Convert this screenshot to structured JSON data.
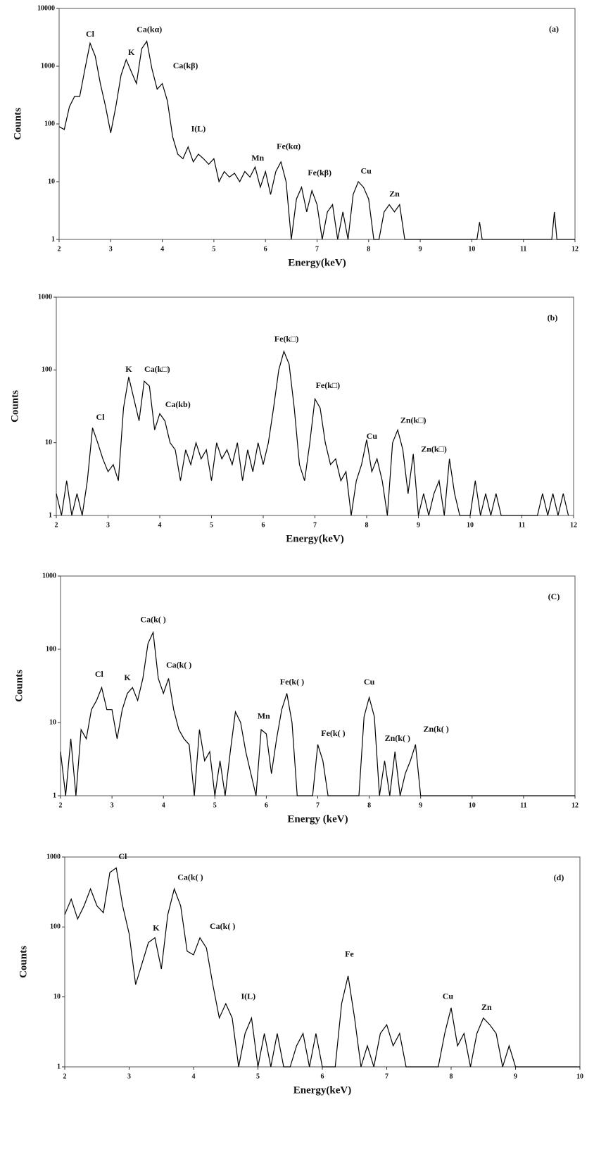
{
  "chart_data": [
    {
      "type": "line",
      "label": "(a)",
      "xlabel": "Energy(keV)",
      "ylabel": "Counts",
      "log_y": true,
      "color": "#000000",
      "xlim": [
        2,
        12
      ],
      "xticks": [
        2,
        3,
        4,
        5,
        6,
        7,
        8,
        9,
        10,
        11,
        12
      ],
      "ylim": [
        1,
        10000
      ],
      "yticks": [
        1,
        10,
        100,
        1000,
        10000
      ],
      "x": [
        2.0,
        2.1,
        2.2,
        2.3,
        2.4,
        2.5,
        2.6,
        2.7,
        2.8,
        2.9,
        3.0,
        3.1,
        3.2,
        3.3,
        3.4,
        3.5,
        3.6,
        3.7,
        3.8,
        3.9,
        4.0,
        4.1,
        4.2,
        4.3,
        4.4,
        4.5,
        4.6,
        4.7,
        4.8,
        4.9,
        5.0,
        5.1,
        5.2,
        5.3,
        5.4,
        5.5,
        5.6,
        5.7,
        5.8,
        5.9,
        6.0,
        6.1,
        6.2,
        6.3,
        6.4,
        6.5,
        6.6,
        6.7,
        6.8,
        6.9,
        7.0,
        7.1,
        7.2,
        7.3,
        7.4,
        7.5,
        7.6,
        7.7,
        7.8,
        7.9,
        8.0,
        8.1,
        8.2,
        8.3,
        8.4,
        8.5,
        8.6,
        8.7,
        8.8,
        10.1,
        10.15,
        10.2,
        11.55,
        11.6,
        11.65,
        12.0
      ],
      "values": [
        90,
        80,
        200,
        300,
        300,
        900,
        2500,
        1500,
        500,
        200,
        70,
        200,
        700,
        1300,
        800,
        500,
        2000,
        2700,
        900,
        400,
        500,
        250,
        60,
        30,
        25,
        40,
        22,
        30,
        25,
        20,
        25,
        10,
        15,
        12,
        14,
        10,
        15,
        12,
        18,
        8,
        15,
        6,
        15,
        22,
        10,
        1,
        5,
        8,
        3,
        7,
        4,
        1,
        3,
        4,
        1,
        3,
        1,
        6,
        10,
        8,
        5,
        1,
        1,
        3,
        4,
        3,
        4,
        1,
        1,
        1,
        2,
        1,
        1,
        3,
        1,
        1
      ],
      "annotations": [
        {
          "text": "Cl",
          "x": 2.6,
          "y": 3500
        },
        {
          "text": "K",
          "x": 3.4,
          "y": 1700
        },
        {
          "text": "Ca(kα)",
          "x": 3.75,
          "y": 4200
        },
        {
          "text": "Ca(kβ)",
          "x": 4.45,
          "y": 1000
        },
        {
          "text": "I(L)",
          "x": 4.7,
          "y": 80
        },
        {
          "text": "Mn",
          "x": 5.85,
          "y": 25
        },
        {
          "text": "Fe(kα)",
          "x": 6.45,
          "y": 40
        },
        {
          "text": "Fe(kβ)",
          "x": 7.05,
          "y": 14
        },
        {
          "text": "Cu",
          "x": 7.95,
          "y": 15
        },
        {
          "text": "Zn",
          "x": 8.5,
          "y": 6
        }
      ]
    },
    {
      "type": "line",
      "label": "(b)",
      "xlabel": "Energy(keV)",
      "ylabel": "Counts",
      "log_y": true,
      "color": "#000000",
      "xlim": [
        2,
        12
      ],
      "xticks": [
        2,
        3,
        4,
        5,
        6,
        7,
        8,
        9,
        10,
        11,
        12
      ],
      "ylim": [
        1,
        1000
      ],
      "yticks": [
        1,
        10,
        100,
        1000
      ],
      "x": [
        2.0,
        2.1,
        2.2,
        2.3,
        2.4,
        2.5,
        2.6,
        2.7,
        2.8,
        2.9,
        3.0,
        3.1,
        3.2,
        3.3,
        3.4,
        3.5,
        3.6,
        3.7,
        3.8,
        3.9,
        4.0,
        4.1,
        4.2,
        4.3,
        4.4,
        4.5,
        4.6,
        4.7,
        4.8,
        4.9,
        5.0,
        5.1,
        5.2,
        5.3,
        5.4,
        5.5,
        5.6,
        5.7,
        5.8,
        5.9,
        6.0,
        6.1,
        6.2,
        6.3,
        6.4,
        6.5,
        6.6,
        6.7,
        6.8,
        6.9,
        7.0,
        7.1,
        7.2,
        7.3,
        7.4,
        7.5,
        7.6,
        7.7,
        7.8,
        7.9,
        8.0,
        8.1,
        8.2,
        8.3,
        8.4,
        8.5,
        8.6,
        8.7,
        8.8,
        8.9,
        9.0,
        9.1,
        9.2,
        9.3,
        9.4,
        9.5,
        9.6,
        9.7,
        9.8,
        9.9,
        10.0,
        10.1,
        10.2,
        10.3,
        10.4,
        10.5,
        10.6,
        10.7,
        11.3,
        11.4,
        11.5,
        11.6,
        11.7,
        11.8,
        11.9
      ],
      "values": [
        2,
        1,
        3,
        1,
        2,
        1,
        3,
        16,
        10,
        6,
        4,
        5,
        3,
        30,
        80,
        40,
        20,
        70,
        60,
        15,
        25,
        20,
        10,
        8,
        3,
        8,
        5,
        10,
        6,
        8,
        3,
        10,
        6,
        8,
        5,
        10,
        3,
        8,
        4,
        10,
        5,
        10,
        30,
        100,
        180,
        120,
        30,
        5,
        3,
        10,
        40,
        30,
        10,
        5,
        6,
        3,
        4,
        1,
        3,
        5,
        11,
        4,
        6,
        3,
        1,
        10,
        15,
        8,
        2,
        7,
        1,
        2,
        1,
        2,
        3,
        1,
        6,
        2,
        1,
        1,
        1,
        3,
        1,
        2,
        1,
        2,
        1,
        1,
        1,
        2,
        1,
        2,
        1,
        2,
        1
      ],
      "annotations": [
        {
          "text": "Cl",
          "x": 2.85,
          "y": 22
        },
        {
          "text": "K",
          "x": 3.4,
          "y": 100
        },
        {
          "text": "Ca(k□)",
          "x": 3.95,
          "y": 100
        },
        {
          "text": "Ca(kb)",
          "x": 4.35,
          "y": 33
        },
        {
          "text": "Fe(k□)",
          "x": 6.45,
          "y": 260
        },
        {
          "text": "Fe(k□)",
          "x": 7.25,
          "y": 60
        },
        {
          "text": "Cu",
          "x": 8.1,
          "y": 12
        },
        {
          "text": "Zn(k□)",
          "x": 8.9,
          "y": 20
        },
        {
          "text": "Zn(k□)",
          "x": 9.3,
          "y": 8
        }
      ]
    },
    {
      "type": "line",
      "label": "(C)",
      "xlabel": "Energy (keV)",
      "ylabel": "Counts",
      "log_y": true,
      "color": "#000000",
      "xlim": [
        2,
        12
      ],
      "xticks": [
        2,
        3,
        4,
        5,
        6,
        7,
        8,
        9,
        10,
        11,
        12
      ],
      "ylim": [
        1,
        1000
      ],
      "yticks": [
        1,
        10,
        100,
        1000
      ],
      "x": [
        2.0,
        2.1,
        2.2,
        2.3,
        2.4,
        2.5,
        2.6,
        2.7,
        2.8,
        2.9,
        3.0,
        3.1,
        3.2,
        3.3,
        3.4,
        3.5,
        3.6,
        3.7,
        3.8,
        3.9,
        4.0,
        4.1,
        4.2,
        4.3,
        4.4,
        4.5,
        4.6,
        4.7,
        4.8,
        4.9,
        5.0,
        5.1,
        5.2,
        5.3,
        5.4,
        5.5,
        5.6,
        5.7,
        5.8,
        5.9,
        6.0,
        6.1,
        6.2,
        6.3,
        6.4,
        6.5,
        6.6,
        6.7,
        6.8,
        6.9,
        7.0,
        7.1,
        7.2,
        7.8,
        7.9,
        8.0,
        8.1,
        8.2,
        8.3,
        8.4,
        8.5,
        8.6,
        8.7,
        8.8,
        8.9,
        9.0,
        12.0
      ],
      "values": [
        4,
        1,
        6,
        1,
        8,
        6,
        15,
        20,
        30,
        15,
        15,
        6,
        15,
        25,
        30,
        20,
        40,
        120,
        170,
        40,
        25,
        40,
        15,
        8,
        6,
        5,
        1,
        8,
        3,
        4,
        1,
        3,
        1,
        4,
        14,
        10,
        4,
        2,
        1,
        8,
        7,
        2,
        6,
        15,
        25,
        10,
        1,
        1,
        1,
        1,
        5,
        3,
        1,
        1,
        12,
        22,
        12,
        1,
        3,
        1,
        4,
        1,
        2,
        3,
        5,
        1,
        1
      ],
      "annotations": [
        {
          "text": "Cl",
          "x": 2.75,
          "y": 45
        },
        {
          "text": "K",
          "x": 3.3,
          "y": 40
        },
        {
          "text": "Ca(k( )",
          "x": 3.8,
          "y": 250
        },
        {
          "text": "Ca(k( )",
          "x": 4.3,
          "y": 60
        },
        {
          "text": "Mn",
          "x": 5.95,
          "y": 12
        },
        {
          "text": "Fe(k( )",
          "x": 6.5,
          "y": 35
        },
        {
          "text": "Fe(k( )",
          "x": 7.3,
          "y": 7
        },
        {
          "text": "Cu",
          "x": 8.0,
          "y": 35
        },
        {
          "text": "Zn(k( )",
          "x": 8.55,
          "y": 6
        },
        {
          "text": "Zn(k( )",
          "x": 9.3,
          "y": 8
        }
      ]
    },
    {
      "type": "line",
      "label": "(d)",
      "xlabel": "Energy(keV)",
      "ylabel": "Counts",
      "log_y": true,
      "color": "#000000",
      "xlim": [
        2,
        10
      ],
      "xticks": [
        2,
        3,
        4,
        5,
        6,
        7,
        8,
        9,
        10
      ],
      "ylim": [
        1,
        1000
      ],
      "yticks": [
        1,
        10,
        100,
        1000
      ],
      "x": [
        2.0,
        2.1,
        2.2,
        2.3,
        2.4,
        2.5,
        2.6,
        2.7,
        2.8,
        2.9,
        3.0,
        3.1,
        3.2,
        3.3,
        3.4,
        3.5,
        3.6,
        3.7,
        3.8,
        3.9,
        4.0,
        4.1,
        4.2,
        4.3,
        4.4,
        4.5,
        4.6,
        4.7,
        4.8,
        4.9,
        5.0,
        5.1,
        5.2,
        5.3,
        5.4,
        5.5,
        5.6,
        5.7,
        5.8,
        5.9,
        6.0,
        6.1,
        6.2,
        6.3,
        6.4,
        6.5,
        6.6,
        6.7,
        6.8,
        6.9,
        7.0,
        7.1,
        7.2,
        7.3,
        7.6,
        7.7,
        7.8,
        7.9,
        8.0,
        8.1,
        8.2,
        8.3,
        8.4,
        8.5,
        8.6,
        8.7,
        8.8,
        8.9,
        9.0,
        10.0
      ],
      "values": [
        150,
        250,
        130,
        200,
        350,
        200,
        160,
        600,
        700,
        200,
        80,
        15,
        30,
        60,
        70,
        25,
        150,
        350,
        200,
        45,
        40,
        70,
        50,
        15,
        5,
        8,
        5,
        1,
        3,
        5,
        1,
        3,
        1,
        3,
        1,
        1,
        2,
        3,
        1,
        3,
        1,
        1,
        1,
        8,
        20,
        5,
        1,
        2,
        1,
        3,
        4,
        2,
        3,
        1,
        1,
        1,
        1,
        3,
        7,
        2,
        3,
        1,
        3,
        5,
        4,
        3,
        1,
        2,
        1,
        1
      ],
      "annotations": [
        {
          "text": "Cl",
          "x": 2.9,
          "y": 1000
        },
        {
          "text": "Ca(k( )",
          "x": 3.95,
          "y": 500
        },
        {
          "text": "K",
          "x": 3.42,
          "y": 95
        },
        {
          "text": "Ca(k( )",
          "x": 4.45,
          "y": 100
        },
        {
          "text": "I(L)",
          "x": 4.85,
          "y": 10
        },
        {
          "text": "Fe",
          "x": 6.42,
          "y": 40
        },
        {
          "text": "Cu",
          "x": 7.95,
          "y": 10
        },
        {
          "text": "Zn",
          "x": 8.55,
          "y": 7
        }
      ]
    }
  ]
}
